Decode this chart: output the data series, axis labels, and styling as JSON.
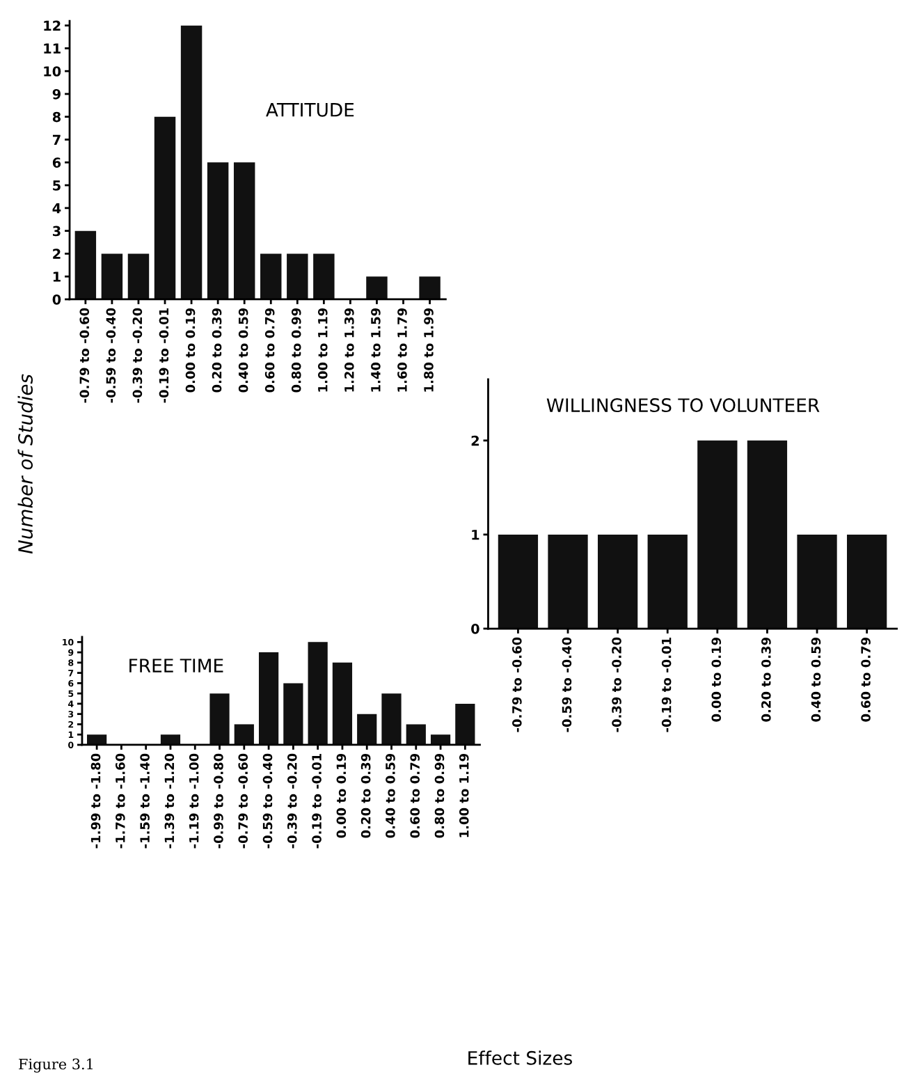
{
  "chart_data": [
    {
      "type": "bar",
      "title": "ATTITUDE",
      "ylabel": "Number of Studies",
      "annotations": [
        "Figure 3.1"
      ],
      "categories": [
        "-0.79 to -0.60",
        "-0.59 to -0.40",
        "-0.39 to -0.20",
        "-0.19 to -0.01",
        "0.00 to 0.19",
        "0.20 to 0.39",
        "0.40 to 0.59",
        "0.60 to 0.79",
        "0.80 to 0.99",
        "1.00 to 1.19",
        "1.20 to 1.39",
        "1.40 to 1.59",
        "1.60 to 1.79",
        "1.80 to 1.99"
      ],
      "values": [
        3,
        2,
        2,
        8,
        12,
        6,
        6,
        2,
        2,
        2,
        0,
        1,
        0,
        1
      ],
      "color": "#111111",
      "ylim": [
        0,
        12.2
      ],
      "yticks": [
        0,
        1,
        2,
        3,
        4,
        5,
        6,
        7,
        8,
        9,
        10,
        11,
        12
      ],
      "grid": false
    },
    {
      "type": "bar",
      "title": "WILLINGNESS TO VOLUNTEER",
      "categories": [
        "-0.79 to -0.60",
        "-0.59 to -0.40",
        "-0.39 to -0.20",
        "-0.19 to -0.01",
        "0.00 to 0.19",
        "0.20 to 0.39",
        "0.40 to 0.59",
        "0.60 to 0.79"
      ],
      "values": [
        1,
        1,
        1,
        1,
        2,
        2,
        1,
        1
      ],
      "color": "#111111",
      "ylim": [
        0,
        2.65
      ],
      "yticks": [
        0,
        1,
        2
      ],
      "grid": false
    },
    {
      "type": "bar",
      "title": "FREE TIME",
      "xlabel": "Effect Sizes",
      "categories": [
        "-1.99 to -1.80",
        "-1.79 to -1.60",
        "-1.59 to -1.40",
        "-1.39 to -1.20",
        "-1.19 to -1.00",
        "-0.99 to -0.80",
        "-0.79 to -0.60",
        "-0.59 to -0.40",
        "-0.39 to -0.20",
        "-0.19 to -0.01",
        "0.00 to 0.19",
        "0.20 to 0.39",
        "0.40 to 0.59",
        "0.60 to 0.79",
        "0.80 to 0.99",
        "1.00 to 1.19"
      ],
      "values": [
        1,
        0,
        0,
        1,
        0,
        5,
        2,
        9,
        6,
        10,
        8,
        3,
        5,
        2,
        1,
        4
      ],
      "color": "#111111",
      "ylim": [
        0,
        10.5
      ],
      "yticks": [
        0,
        1,
        2,
        3,
        4,
        5,
        6,
        7,
        8,
        9,
        10
      ],
      "grid": false
    }
  ]
}
